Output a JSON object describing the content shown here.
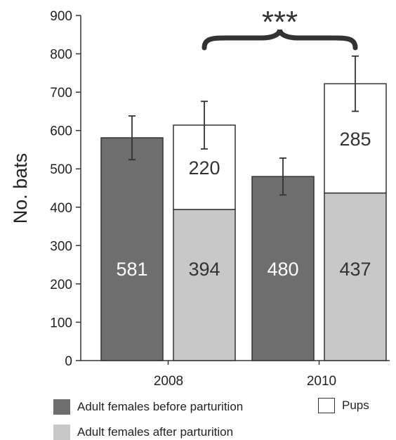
{
  "chart_data": {
    "type": "bar",
    "subtype": "stacked-grouped",
    "categories": [
      "2008",
      "2010"
    ],
    "ylabel": "No. bats",
    "xlabel": "",
    "ylim": [
      0,
      900
    ],
    "yticks": [
      0,
      100,
      200,
      300,
      400,
      500,
      600,
      700,
      800,
      900
    ],
    "significance": "***",
    "series": [
      {
        "name": "Adult females before parturition",
        "color": "#6e6e6e",
        "label_color": "#ffffff",
        "values": [
          581,
          480
        ],
        "errors": [
          57,
          48
        ],
        "stack": "before"
      },
      {
        "name": "Adult females after parturition",
        "color": "#c8c8c8",
        "label_color": "#333333",
        "values": [
          394,
          437
        ],
        "stack": "after"
      },
      {
        "name": "Pups",
        "color": "#ffffff",
        "label_color": "#333333",
        "values": [
          220,
          285
        ],
        "stack_total_errors": [
          62,
          72
        ],
        "stack": "after"
      }
    ],
    "grid": false,
    "legend_position": "bottom"
  },
  "legend": {
    "before": "Adult females before parturition",
    "pups": "Pups",
    "after": "Adult females after parturition"
  }
}
